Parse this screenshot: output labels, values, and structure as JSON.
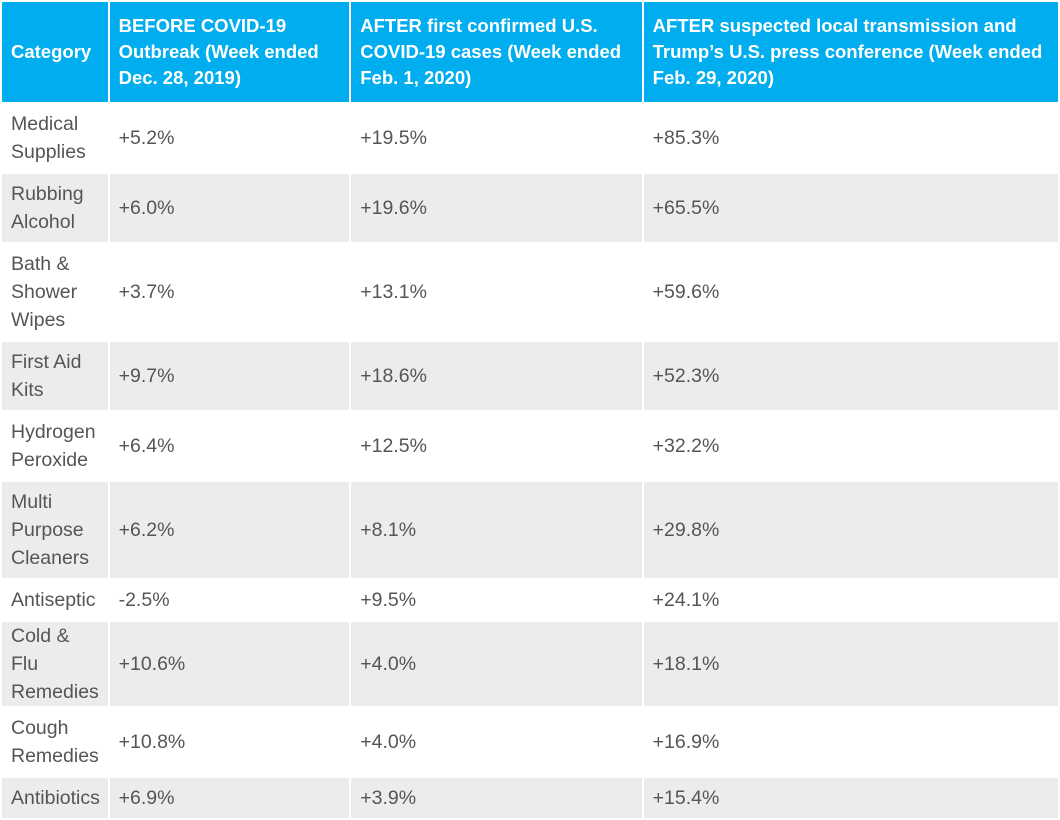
{
  "chart_data": {
    "type": "table",
    "columns": [
      "Category",
      "BEFORE COVID-19 Outbreak (Week ended Dec. 28, 2019)",
      "AFTER first confirmed U.S. COVID-19 cases (Week ended Feb. 1, 2020)",
      "AFTER suspected local transmission and Trump’s U.S. press conference (Week ended Feb. 29, 2020)"
    ],
    "rows": [
      [
        "Medical Supplies",
        "+5.2%",
        "+19.5%",
        "+85.3%"
      ],
      [
        "Rubbing Alcohol",
        "+6.0%",
        "+19.6%",
        "+65.5%"
      ],
      [
        "Bath & Shower Wipes",
        "+3.7%",
        "+13.1%",
        "+59.6%"
      ],
      [
        "First Aid Kits",
        "+9.7%",
        "+18.6%",
        "+52.3%"
      ],
      [
        "Hydrogen Peroxide",
        "+6.4%",
        "+12.5%",
        "+32.2%"
      ],
      [
        "Multi Purpose Cleaners",
        "+6.2%",
        "+8.1%",
        "+29.8%"
      ],
      [
        "Antiseptic",
        "-2.5%",
        "+9.5%",
        "+24.1%"
      ],
      [
        "Cold & Flu Remedies",
        "+10.6%",
        "+4.0%",
        "+18.1%"
      ],
      [
        "Cough Remedies",
        "+10.8%",
        "+4.0%",
        "+16.9%"
      ],
      [
        "Antibiotics",
        "+6.9%",
        "+3.9%",
        "+15.4%"
      ]
    ]
  },
  "colors": {
    "header_background": "#00adee",
    "header_text": "#ffffff",
    "row_stripe": "#ececec",
    "cell_text": "#555555"
  }
}
